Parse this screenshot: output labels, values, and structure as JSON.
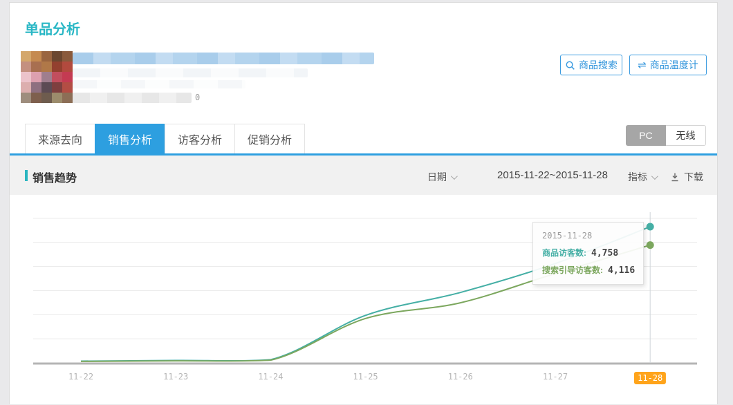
{
  "page": {
    "title": "单品分析"
  },
  "product": {
    "metric_value": "0",
    "mosaic_colors": [
      "#d4a76b",
      "#c58a50",
      "#9a6540",
      "#6b4730",
      "#8a5a3c",
      "#c49080",
      "#a86f50",
      "#b07848",
      "#93402f",
      "#b24a3e",
      "#ecc3cb",
      "#dda0af",
      "#9f7e8e",
      "#c24e5e",
      "#c43b52",
      "#dcaeae",
      "#8f7080",
      "#5c4b54",
      "#7e3f3f",
      "#b34d44",
      "#9e8d7d",
      "#7e5f4d",
      "#6e5c4e",
      "#9c8c6c",
      "#8c6e56"
    ]
  },
  "toolbar": {
    "search_button": "商品搜索",
    "thermometer_button": "商品温度计",
    "thermometer_icon_glyph": "⇌"
  },
  "tabs": [
    {
      "label": "来源去向",
      "active": false
    },
    {
      "label": "销售分析",
      "active": true
    },
    {
      "label": "访客分析",
      "active": false
    },
    {
      "label": "促销分析",
      "active": false
    }
  ],
  "device_toggle": {
    "pc": "PC",
    "wireless": "无线",
    "active": "PC"
  },
  "trend_header": {
    "title": "销售趋势",
    "date_label": "日期",
    "date_range": "2015-11-22~2015-11-28",
    "metric_label": "指标",
    "download_label": "下载"
  },
  "chart_data": {
    "type": "line",
    "title": "销售趋势",
    "categories": [
      "11-22",
      "11-23",
      "11-24",
      "11-25",
      "11-26",
      "11-27",
      "11-28"
    ],
    "series": [
      {
        "name": "商品访客数",
        "color": "#45afa5",
        "values": [
          60,
          85,
          110,
          1660,
          2460,
          3470,
          4758
        ]
      },
      {
        "name": "搜索引导访客数",
        "color": "#7ca75e",
        "values": [
          50,
          70,
          95,
          1550,
          2100,
          3120,
          4116
        ]
      }
    ],
    "xlabel": "",
    "ylabel": "",
    "ylim": [
      0,
      5000
    ],
    "grid": true,
    "legend_position": "none",
    "highlighted_category": "11-28",
    "highlight_color": "#ffa41b",
    "tooltip": {
      "date": "2015-11-28",
      "rows": [
        {
          "label": "商品访客数",
          "value": "4,758"
        },
        {
          "label": "搜索引导访客数",
          "value": "4,116"
        }
      ]
    }
  }
}
